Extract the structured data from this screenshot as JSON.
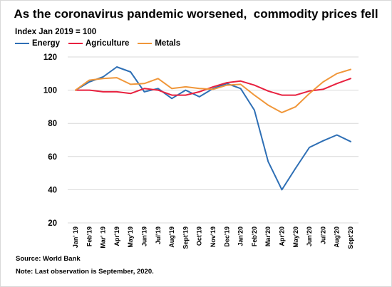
{
  "chart_data": {
    "type": "line",
    "title": "As the coronavirus pandemic worsened,  commodity prices fell",
    "ylabel": "Index Jan 2019 = 100",
    "xlabel": "",
    "ylim": [
      20,
      120
    ],
    "yticks": [
      20,
      40,
      60,
      80,
      100,
      120
    ],
    "grid": true,
    "legend_position": "top-left",
    "categories": [
      "Jan' 19",
      "Feb'19",
      "Mar' 19",
      "Apr'19",
      "May'19",
      "Jun'19",
      "Jul'19",
      "Aug'19",
      "Sept'19",
      "Oct'19",
      "Nov'19",
      "Dec'19",
      "Jan'20",
      "Feb'20",
      "Mar'20",
      "Apr'20",
      "May'20",
      "Jun'20",
      "Jul'20",
      "Aug'20",
      "Sept'20"
    ],
    "series": [
      {
        "name": "Energy",
        "color": "#2e6fb5",
        "values": [
          100,
          105,
          108,
          114,
          111,
          99,
          101,
          95,
          100,
          96,
          101,
          104,
          101,
          88,
          57,
          40,
          53,
          65.5,
          69.5,
          73,
          69
        ]
      },
      {
        "name": "Agriculture",
        "color": "#e8213f",
        "values": [
          100,
          100,
          99,
          99,
          98,
          101,
          100,
          97,
          97,
          99,
          102,
          104.5,
          105.5,
          103,
          99.5,
          97,
          97,
          99.5,
          100.5,
          104,
          107
        ]
      },
      {
        "name": "Metals",
        "color": "#f0973a",
        "values": [
          100,
          106,
          107,
          107.5,
          103.5,
          104,
          107,
          101,
          102,
          101,
          100.5,
          103,
          103.5,
          97,
          91,
          86.5,
          90,
          98,
          105,
          110,
          112.5
        ]
      }
    ],
    "source": "Source: World Bank",
    "note": "Note: Last observation is September, 2020."
  }
}
